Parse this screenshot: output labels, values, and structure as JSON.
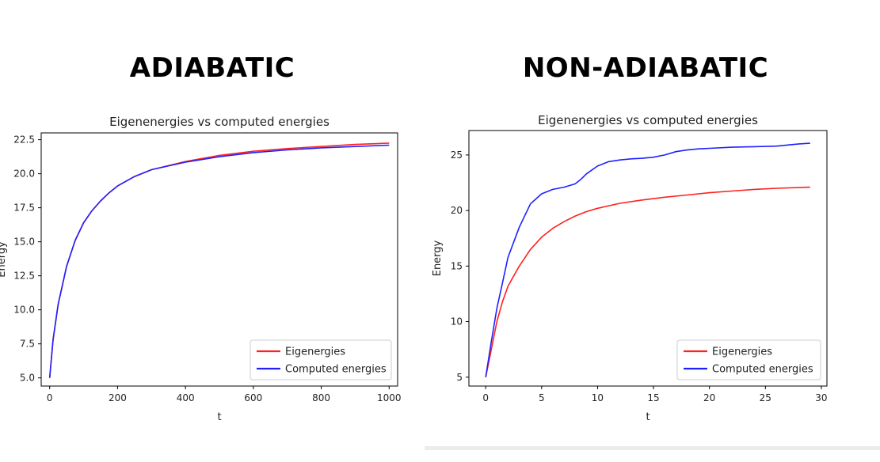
{
  "headings": {
    "left": "ADIABATIC",
    "right": "NON-ADIABATIC"
  },
  "colors": {
    "eigen": "#ff2020",
    "computed": "#2020ff"
  },
  "chart_data": [
    {
      "type": "line",
      "title": "Eigenenergies vs computed energies",
      "xlabel": "t",
      "ylabel": "Energy",
      "xlim": [
        -25,
        1025
      ],
      "ylim": [
        4.4,
        23.0
      ],
      "xticks": [
        0,
        200,
        400,
        600,
        800,
        1000
      ],
      "yticks": [
        5.0,
        7.5,
        10.0,
        12.5,
        15.0,
        17.5,
        20.0,
        22.5
      ],
      "ytick_labels": [
        "5.0",
        "7.5",
        "10.0",
        "12.5",
        "15.0",
        "17.5",
        "20.0",
        "22.5"
      ],
      "grid": false,
      "legend": "bottom-right",
      "series": [
        {
          "name": "Eigenergies",
          "color": "#ff2020",
          "x": [
            0,
            10,
            25,
            50,
            75,
            100,
            125,
            150,
            175,
            200,
            250,
            300,
            400,
            500,
            600,
            700,
            800,
            900,
            1000
          ],
          "y": [
            5.0,
            7.8,
            10.4,
            13.2,
            15.1,
            16.4,
            17.3,
            18.0,
            18.6,
            19.1,
            19.8,
            20.3,
            20.9,
            21.35,
            21.65,
            21.85,
            22.0,
            22.15,
            22.25
          ]
        },
        {
          "name": "Computed energies",
          "color": "#2020ff",
          "x": [
            0,
            10,
            25,
            50,
            75,
            100,
            125,
            150,
            175,
            200,
            250,
            300,
            400,
            500,
            600,
            700,
            800,
            900,
            1000
          ],
          "y": [
            5.0,
            7.8,
            10.4,
            13.2,
            15.1,
            16.4,
            17.3,
            18.0,
            18.6,
            19.1,
            19.8,
            20.3,
            20.85,
            21.25,
            21.55,
            21.75,
            21.9,
            22.0,
            22.1
          ]
        }
      ]
    },
    {
      "type": "line",
      "title": "Eigenenergies vs computed energies",
      "xlabel": "t",
      "ylabel": "Energy",
      "xlim": [
        -1.5,
        30.5
      ],
      "ylim": [
        4.2,
        27.2
      ],
      "xticks": [
        0,
        5,
        10,
        15,
        20,
        25,
        30
      ],
      "yticks": [
        5,
        10,
        15,
        20,
        25
      ],
      "ytick_labels": [
        "5",
        "10",
        "15",
        "20",
        "25"
      ],
      "grid": false,
      "legend": "bottom-right",
      "series": [
        {
          "name": "Eigenergies",
          "color": "#ff2020",
          "x": [
            0,
            0.5,
            1,
            1.5,
            2,
            3,
            4,
            5,
            6,
            7,
            8,
            9,
            10,
            12,
            14,
            16,
            18,
            20,
            22,
            24,
            26,
            29
          ],
          "y": [
            5.0,
            7.5,
            10.0,
            11.8,
            13.2,
            15.0,
            16.5,
            17.6,
            18.4,
            19.0,
            19.5,
            19.9,
            20.2,
            20.65,
            20.95,
            21.2,
            21.4,
            21.6,
            21.75,
            21.9,
            22.0,
            22.1
          ]
        },
        {
          "name": "Computed energies",
          "color": "#2020ff",
          "x": [
            0,
            0.5,
            1,
            1.5,
            2,
            3,
            4,
            5,
            6,
            7,
            8,
            8.5,
            9,
            10,
            11,
            12,
            13,
            14,
            15,
            16,
            17,
            18,
            19,
            20,
            22,
            24,
            26,
            27,
            28,
            29
          ],
          "y": [
            5.0,
            8.2,
            11.2,
            13.5,
            15.8,
            18.5,
            20.6,
            21.5,
            21.9,
            22.1,
            22.4,
            22.8,
            23.3,
            24.0,
            24.4,
            24.55,
            24.65,
            24.7,
            24.8,
            25.0,
            25.3,
            25.45,
            25.55,
            25.6,
            25.7,
            25.75,
            25.8,
            25.9,
            26.0,
            26.05
          ]
        }
      ]
    }
  ]
}
